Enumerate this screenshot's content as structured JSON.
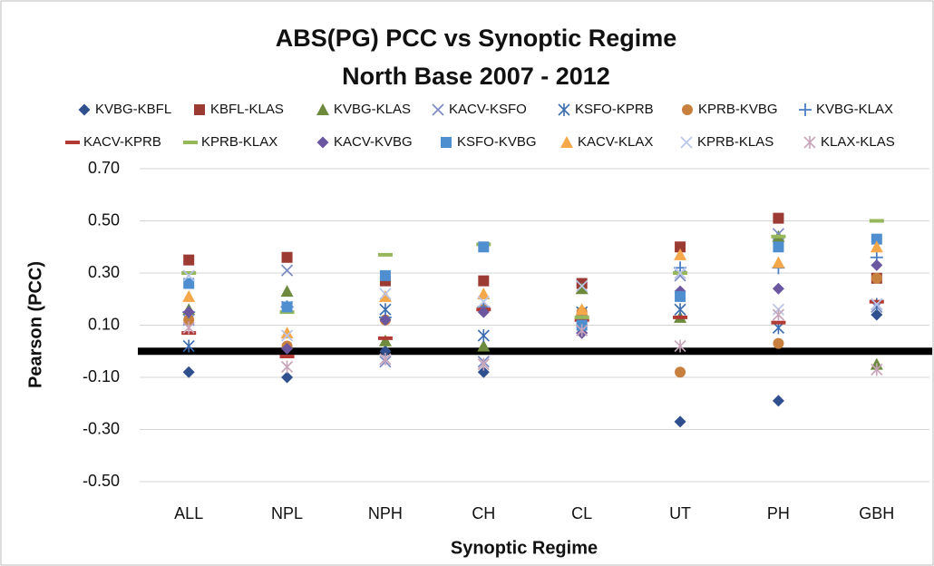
{
  "chart_data": {
    "type": "scatter",
    "title": "ABS(PG) PCC vs Synoptic Regime",
    "subtitle": "North Base 2007 - 2012",
    "x_label": "Synoptic Regime",
    "y_label": "Pearson (PCC)",
    "categories": [
      "ALL",
      "NPL",
      "NPH",
      "CH",
      "CL",
      "UT",
      "PH",
      "GBH"
    ],
    "ylim": [
      -0.5,
      0.7
    ],
    "yticks": [
      {
        "value": -0.5,
        "label": "-0.50"
      },
      {
        "value": -0.3,
        "label": "-0.30"
      },
      {
        "value": -0.1,
        "label": "-0.10"
      },
      {
        "value": 0.1,
        "label": "0.10"
      },
      {
        "value": 0.3,
        "label": "0.30"
      },
      {
        "value": 0.5,
        "label": "0.50"
      },
      {
        "value": 0.7,
        "label": "0.70"
      }
    ],
    "grid": true,
    "reference_line": 0,
    "legend": "top",
    "series": [
      {
        "name": "KVBG-KBFL",
        "color": "#2f4f8f",
        "marker": "diamond",
        "values": [
          -0.08,
          -0.1,
          0.0,
          -0.08,
          0.07,
          -0.27,
          -0.19,
          0.14
        ]
      },
      {
        "name": "KBFL-KLAS",
        "color": "#9c3a34",
        "marker": "square",
        "values": [
          0.35,
          0.36,
          0.27,
          0.27,
          0.26,
          0.4,
          0.51,
          0.28
        ]
      },
      {
        "name": "KVBG-KLAS",
        "color": "#6e8b3d",
        "marker": "triangle",
        "values": [
          0.16,
          0.23,
          0.04,
          0.02,
          0.24,
          0.13,
          0.44,
          -0.05
        ]
      },
      {
        "name": "KACV-KSFO",
        "color": "#7b89c4",
        "marker": "x",
        "values": [
          0.12,
          0.31,
          -0.04,
          -0.04,
          0.12,
          0.29,
          0.45,
          0.17
        ]
      },
      {
        "name": "KSFO-KPRB",
        "color": "#3d6db0",
        "marker": "asterisk",
        "values": [
          0.02,
          0.17,
          0.16,
          0.06,
          0.15,
          0.16,
          0.09,
          0.18
        ]
      },
      {
        "name": "KPRB-KVBG",
        "color": "#c8803e",
        "marker": "circle",
        "values": [
          0.12,
          0.02,
          0.12,
          0.16,
          0.15,
          -0.08,
          0.03,
          0.28
        ]
      },
      {
        "name": "KVBG-KLAX",
        "color": "#4a7fc5",
        "marker": "plus",
        "values": [
          0.15,
          0.17,
          0.13,
          0.17,
          0.13,
          0.32,
          0.32,
          0.36
        ]
      },
      {
        "name": "KACV-KPRB",
        "color": "#b23a35",
        "marker": "dash",
        "values": [
          0.07,
          -0.02,
          0.05,
          0.16,
          0.12,
          0.13,
          0.11,
          0.19
        ]
      },
      {
        "name": "KPRB-KLAX",
        "color": "#96b85a",
        "marker": "dash",
        "values": [
          0.3,
          0.15,
          0.37,
          0.41,
          0.13,
          0.3,
          0.44,
          0.5
        ]
      },
      {
        "name": "KACV-KVBG",
        "color": "#6b56a0",
        "marker": "diamond",
        "values": [
          0.15,
          0.01,
          0.12,
          0.15,
          0.07,
          0.23,
          0.24,
          0.33
        ]
      },
      {
        "name": "KSFO-KVBG",
        "color": "#4f8fd0",
        "marker": "square",
        "values": [
          0.26,
          0.17,
          0.29,
          0.4,
          0.1,
          0.21,
          0.4,
          0.43
        ]
      },
      {
        "name": "KACV-KLAX",
        "color": "#f5a84a",
        "marker": "triangle",
        "values": [
          0.21,
          0.07,
          0.21,
          0.22,
          0.16,
          0.37,
          0.34,
          0.4
        ]
      },
      {
        "name": "KPRB-KLAS",
        "color": "#b8c4e8",
        "marker": "x",
        "values": [
          0.29,
          0.06,
          0.22,
          0.19,
          0.25,
          0.3,
          0.16,
          0.18
        ]
      },
      {
        "name": "KLAX-KLAS",
        "color": "#c7a4b8",
        "marker": "asterisk",
        "values": [
          0.09,
          -0.06,
          -0.03,
          -0.05,
          0.08,
          0.02,
          0.14,
          -0.07
        ]
      }
    ]
  }
}
